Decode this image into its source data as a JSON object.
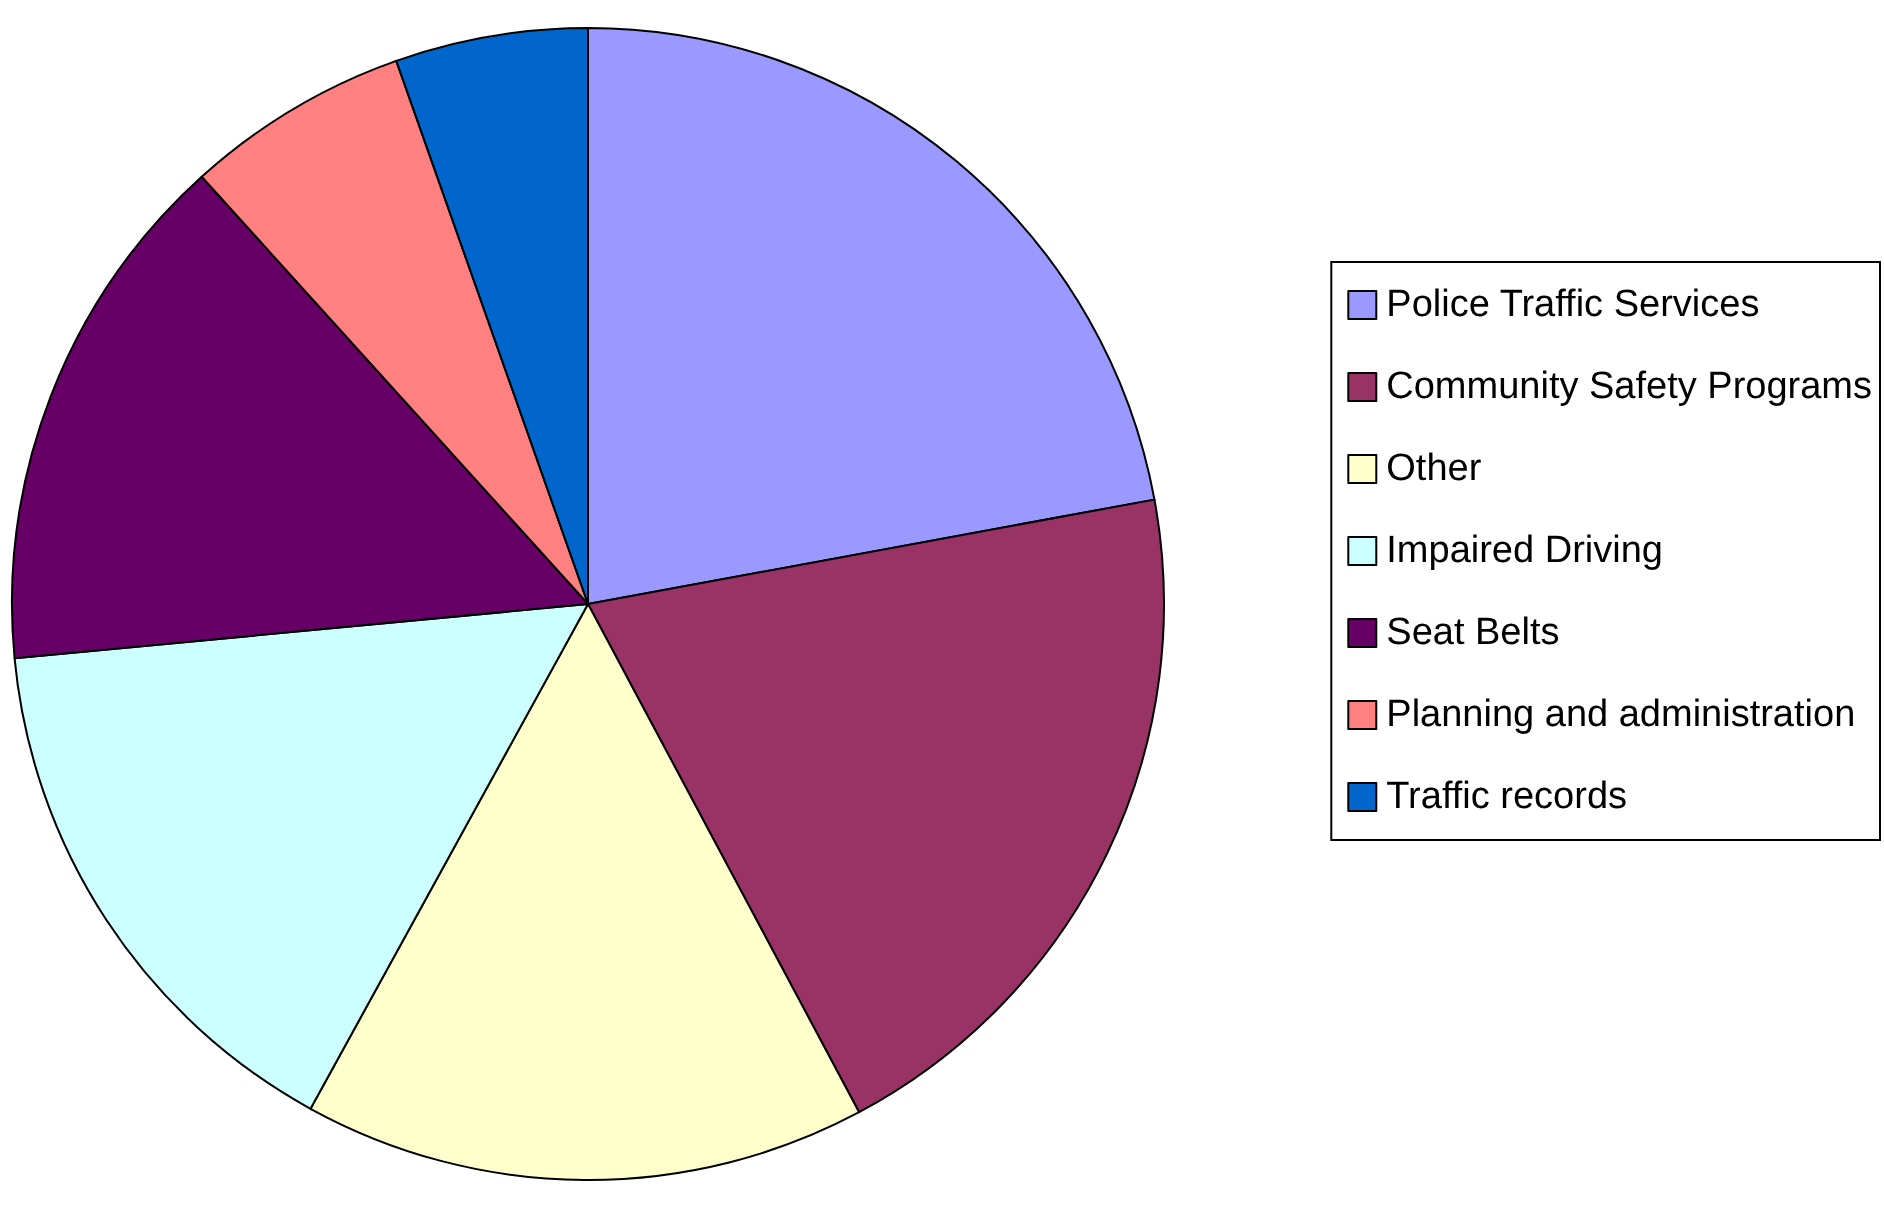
{
  "chart_data": {
    "type": "pie",
    "categories": [
      "Police Traffic Services",
      "Community Safety Programs",
      "Other",
      "Impaired Driving",
      "Seat Belts",
      "Planning and administration",
      "Traffic records"
    ],
    "values": [
      22.1,
      20.1,
      15.8,
      15.5,
      14.8,
      6.3,
      5.4
    ],
    "colors": [
      "#9999ff",
      "#993366",
      "#ffffcc",
      "#ccffff",
      "#660066",
      "#ff8080",
      "#0066cc"
    ],
    "legend": "right"
  }
}
